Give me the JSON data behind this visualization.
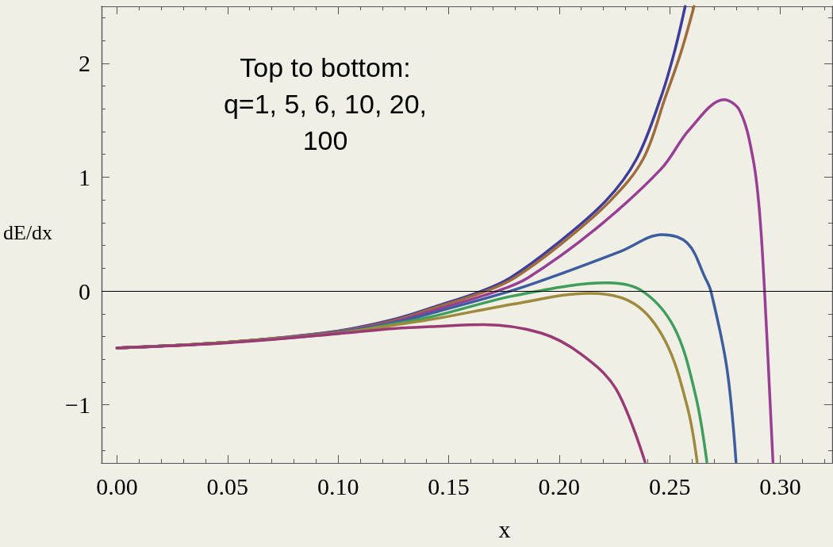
{
  "chart_data": {
    "type": "line",
    "xlabel": "x",
    "ylabel": "dE/dx",
    "annotations": [
      "Top to bottom:\nq=1, 5, 6, 10, 20,\n100"
    ],
    "xlim": [
      -0.007,
      0.3235
    ],
    "ylim": [
      -1.51,
      2.5
    ],
    "xticks": [
      {
        "value": 0,
        "label": "0.00"
      },
      {
        "value": 0.01,
        "label": null
      },
      {
        "value": 0.02,
        "label": null
      },
      {
        "value": 0.03,
        "label": null
      },
      {
        "value": 0.04,
        "label": null
      },
      {
        "value": 0.05,
        "label": "0.05"
      },
      {
        "value": 0.06,
        "label": null
      },
      {
        "value": 0.07,
        "label": null
      },
      {
        "value": 0.08,
        "label": null
      },
      {
        "value": 0.09,
        "label": null
      },
      {
        "value": 0.1,
        "label": "0.10"
      },
      {
        "value": 0.11,
        "label": null
      },
      {
        "value": 0.12,
        "label": null
      },
      {
        "value": 0.13,
        "label": null
      },
      {
        "value": 0.14,
        "label": null
      },
      {
        "value": 0.15,
        "label": "0.15"
      },
      {
        "value": 0.16,
        "label": null
      },
      {
        "value": 0.17,
        "label": null
      },
      {
        "value": 0.18,
        "label": null
      },
      {
        "value": 0.19,
        "label": null
      },
      {
        "value": 0.2,
        "label": "0.20"
      },
      {
        "value": 0.21,
        "label": null
      },
      {
        "value": 0.22,
        "label": null
      },
      {
        "value": 0.23,
        "label": null
      },
      {
        "value": 0.24,
        "label": null
      },
      {
        "value": 0.25,
        "label": "0.25"
      },
      {
        "value": 0.26,
        "label": null
      },
      {
        "value": 0.27,
        "label": null
      },
      {
        "value": 0.28,
        "label": null
      },
      {
        "value": 0.29,
        "label": null
      },
      {
        "value": 0.3,
        "label": "0.30"
      },
      {
        "value": 0.31,
        "label": null
      },
      {
        "value": 0.32,
        "label": null
      }
    ],
    "yticks": [
      {
        "value": -1.4,
        "label": null
      },
      {
        "value": -1.2,
        "label": null
      },
      {
        "value": -1,
        "label": "−1"
      },
      {
        "value": -0.8,
        "label": null
      },
      {
        "value": -0.6,
        "label": null
      },
      {
        "value": -0.4,
        "label": null
      },
      {
        "value": -0.2,
        "label": null
      },
      0,
      {
        "value": 0.2,
        "label": null
      },
      {
        "value": 0.4,
        "label": null
      },
      {
        "value": 0.6,
        "label": null
      },
      {
        "value": 0.8,
        "label": null
      },
      1,
      {
        "value": 1.2,
        "label": null
      },
      {
        "value": 1.4,
        "label": null
      },
      {
        "value": 1.6,
        "label": null
      },
      {
        "value": 1.8,
        "label": null
      },
      2,
      {
        "value": 2.2,
        "label": null
      },
      {
        "value": 2.4,
        "label": null
      }
    ],
    "grid": false,
    "marker": "none",
    "line_style": "solid",
    "ref_lines": [
      {
        "axis": "y",
        "value": 0,
        "color": "#000000"
      }
    ],
    "series": [
      {
        "color": "#3f3d99",
        "x": [
          0,
          0.05,
          0.1,
          0.125,
          0.145,
          0.165,
          0.178,
          0.198,
          0.221,
          0.235,
          0.246,
          0.252,
          0.257
        ],
        "values": [
          -0.5,
          -0.45,
          -0.35,
          -0.25,
          -0.13,
          0,
          0.118,
          0.4,
          0.79,
          1.16,
          1.7,
          2.09,
          2.5
        ]
      },
      {
        "color": "#9e6b3c",
        "x": [
          0,
          0.05,
          0.1,
          0.125,
          0.145,
          0.167,
          0.18,
          0.2,
          0.223,
          0.238,
          0.248,
          0.255,
          0.261
        ],
        "values": [
          -0.5,
          -0.45,
          -0.355,
          -0.26,
          -0.14,
          0,
          0.118,
          0.4,
          0.79,
          1.16,
          1.7,
          2.09,
          2.5
        ]
      },
      {
        "color": "#983f95",
        "x": [
          0,
          0.05,
          0.1,
          0.125,
          0.145,
          0.172,
          0.186,
          0.216,
          0.246,
          0.259,
          0.2746,
          0.2818,
          0.2877,
          0.2906,
          0.2929,
          0.2967
        ],
        "values": [
          -0.5,
          -0.45,
          -0.36,
          -0.27,
          -0.16,
          0,
          0.118,
          0.537,
          1.07,
          1.42,
          1.68,
          1.58,
          1.16,
          0.7,
          0,
          -1.5
        ]
      },
      {
        "color": "#3d5d9e",
        "x": [
          0,
          0.05,
          0.1,
          0.125,
          0.145,
          0.178,
          0.196,
          0.228,
          0.2465,
          0.258,
          0.266,
          0.2686,
          0.2758,
          0.28
        ],
        "values": [
          -0.5,
          -0.45,
          -0.365,
          -0.28,
          -0.18,
          0,
          0.118,
          0.35,
          0.495,
          0.42,
          0.118,
          0,
          -0.67,
          -1.5
        ]
      },
      {
        "color": "#3e9e5b",
        "x": [
          0,
          0.05,
          0.1,
          0.125,
          0.1444,
          0.18,
          0.222,
          0.2376,
          0.252,
          0.2615,
          0.2668
        ],
        "values": [
          -0.5,
          -0.45,
          -0.37,
          -0.29,
          -0.216,
          -0.04,
          0.072,
          0.0,
          -0.32,
          -0.9,
          -1.5
        ]
      },
      {
        "color": "#9e8a3d",
        "x": [
          0,
          0.05,
          0.1,
          0.125,
          0.1444,
          0.18,
          0.2137,
          0.234,
          0.248,
          0.258,
          0.2624
        ],
        "values": [
          -0.5,
          -0.45,
          -0.37,
          -0.3,
          -0.242,
          -0.112,
          -0.02,
          -0.112,
          -0.44,
          -1.02,
          -1.5
        ]
      },
      {
        "color": "#9a3a74",
        "x": [
          0,
          0.05,
          0.1,
          0.125,
          0.1444,
          0.166,
          0.192,
          0.21,
          0.2256,
          0.2388
        ],
        "values": [
          -0.5,
          -0.455,
          -0.375,
          -0.33,
          -0.31,
          -0.295,
          -0.37,
          -0.555,
          -0.857,
          -1.5
        ]
      }
    ]
  }
}
